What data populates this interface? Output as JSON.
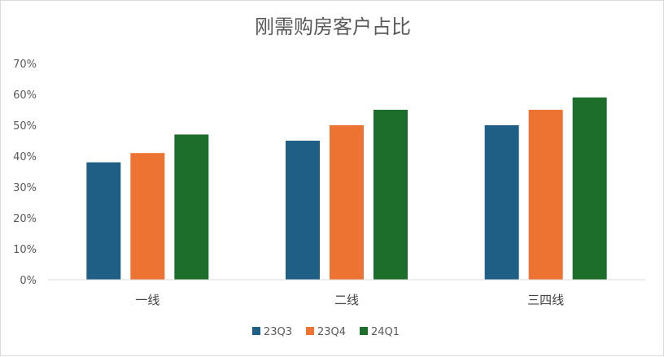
{
  "chart_data": {
    "type": "bar",
    "title": "刚需购房客户占比",
    "xlabel": "",
    "ylabel": "",
    "categories": [
      "一线",
      "二线",
      "三四线"
    ],
    "series": [
      {
        "name": "23Q3",
        "values": [
          38,
          45,
          50
        ],
        "color": "#1f5f85"
      },
      {
        "name": "23Q4",
        "values": [
          41,
          50,
          55
        ],
        "color": "#ec7332"
      },
      {
        "name": "24Q1",
        "values": [
          47,
          55,
          59
        ],
        "color": "#1c6e2a"
      }
    ],
    "ylim": [
      0,
      70
    ],
    "yticks": [
      "0%",
      "10%",
      "20%",
      "30%",
      "40%",
      "50%",
      "60%",
      "70%"
    ],
    "grid": false,
    "legend": "bottom"
  }
}
